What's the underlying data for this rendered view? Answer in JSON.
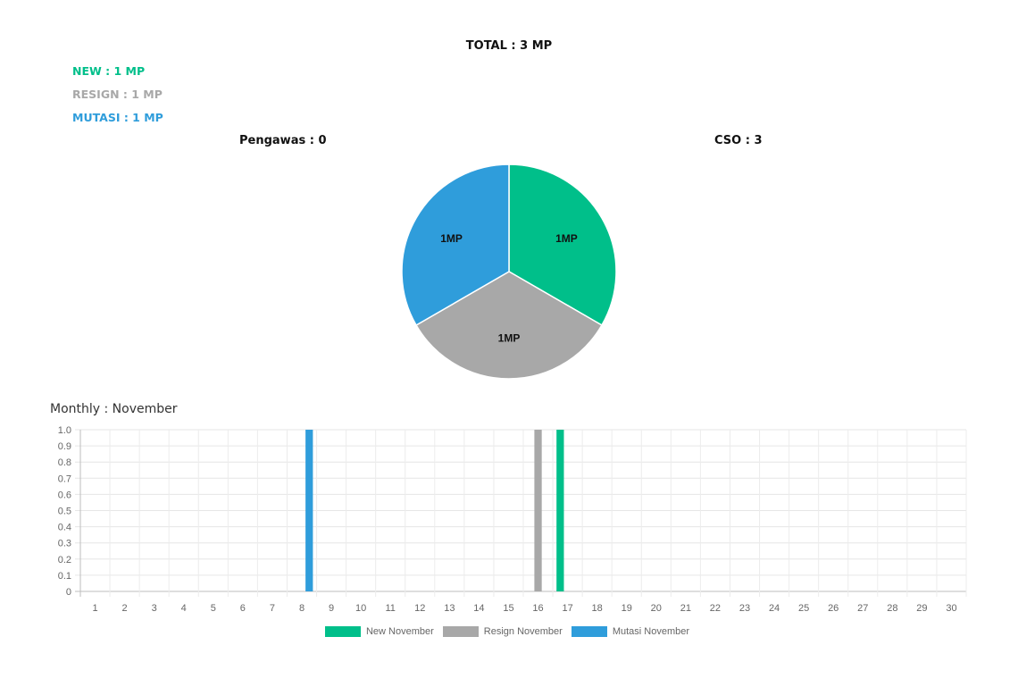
{
  "summary": {
    "total": "TOTAL : 3 MP",
    "new": "NEW : 1 MP",
    "resign": "RESIGN : 1 MP",
    "mutasi": "MUTASI : 1 MP",
    "pengawas": "Pengawas : 0",
    "cso": "CSO : 3"
  },
  "colors": {
    "new": "#00bf8a",
    "resign": "#a8a8a8",
    "mutasi": "#2f9ddb"
  },
  "monthly_title": "Monthly : November",
  "chart_data": [
    {
      "type": "pie",
      "slices": [
        {
          "label": "1MP",
          "value": 1,
          "color": "#00bf8a"
        },
        {
          "label": "1MP",
          "value": 1,
          "color": "#a8a8a8"
        },
        {
          "label": "1MP",
          "value": 1,
          "color": "#2f9ddb"
        }
      ]
    },
    {
      "type": "bar",
      "title": "Monthly : November",
      "categories": [
        "1",
        "2",
        "3",
        "4",
        "5",
        "6",
        "7",
        "8",
        "9",
        "10",
        "11",
        "12",
        "13",
        "14",
        "15",
        "16",
        "17",
        "18",
        "19",
        "20",
        "21",
        "22",
        "23",
        "24",
        "25",
        "26",
        "27",
        "28",
        "29",
        "30"
      ],
      "series": [
        {
          "name": "New November",
          "color": "#00bf8a",
          "values": [
            0,
            0,
            0,
            0,
            0,
            0,
            0,
            0,
            0,
            0,
            0,
            0,
            0,
            0,
            0,
            0,
            1,
            0,
            0,
            0,
            0,
            0,
            0,
            0,
            0,
            0,
            0,
            0,
            0,
            0
          ]
        },
        {
          "name": "Resign November",
          "color": "#a8a8a8",
          "values": [
            0,
            0,
            0,
            0,
            0,
            0,
            0,
            0,
            0,
            0,
            0,
            0,
            0,
            0,
            0,
            1,
            0,
            0,
            0,
            0,
            0,
            0,
            0,
            0,
            0,
            0,
            0,
            0,
            0,
            0
          ]
        },
        {
          "name": "Mutasi November",
          "color": "#2f9ddb",
          "values": [
            0,
            0,
            0,
            0,
            0,
            0,
            0,
            1,
            0,
            0,
            0,
            0,
            0,
            0,
            0,
            0,
            0,
            0,
            0,
            0,
            0,
            0,
            0,
            0,
            0,
            0,
            0,
            0,
            0,
            0
          ]
        }
      ],
      "y_ticks": [
        "1.0",
        "0.9",
        "0.8",
        "0.7",
        "0.6",
        "0.5",
        "0.4",
        "0.3",
        "0.2",
        "0.1",
        "0"
      ],
      "ylim": [
        0,
        1
      ],
      "grid": true,
      "legend_position": "bottom"
    }
  ]
}
